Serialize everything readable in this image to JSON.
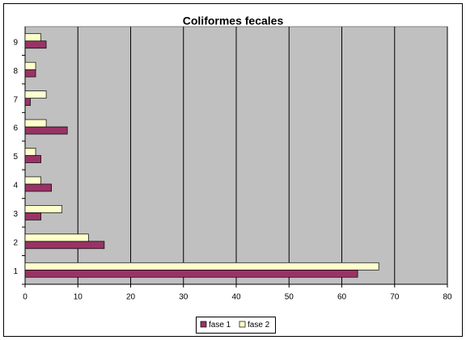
{
  "chart_data": {
    "type": "hbar",
    "title": "Coliformes fecales",
    "categories": [
      "1",
      "2",
      "3",
      "4",
      "5",
      "6",
      "7",
      "8",
      "9"
    ],
    "series": [
      {
        "name": "fase 1",
        "color": "#993366",
        "values": [
          63,
          15,
          3,
          5,
          3,
          8,
          1,
          2,
          4
        ]
      },
      {
        "name": "fase 2",
        "color": "#ffffcc",
        "values": [
          67,
          12,
          7,
          3,
          2,
          4,
          4,
          2,
          3
        ]
      }
    ],
    "xlim": [
      0,
      80
    ],
    "xticks": [
      0,
      10,
      20,
      30,
      40,
      50,
      60,
      70,
      80
    ],
    "grid": true,
    "legend": "bottom",
    "plot_background": "#c0c0c0"
  }
}
